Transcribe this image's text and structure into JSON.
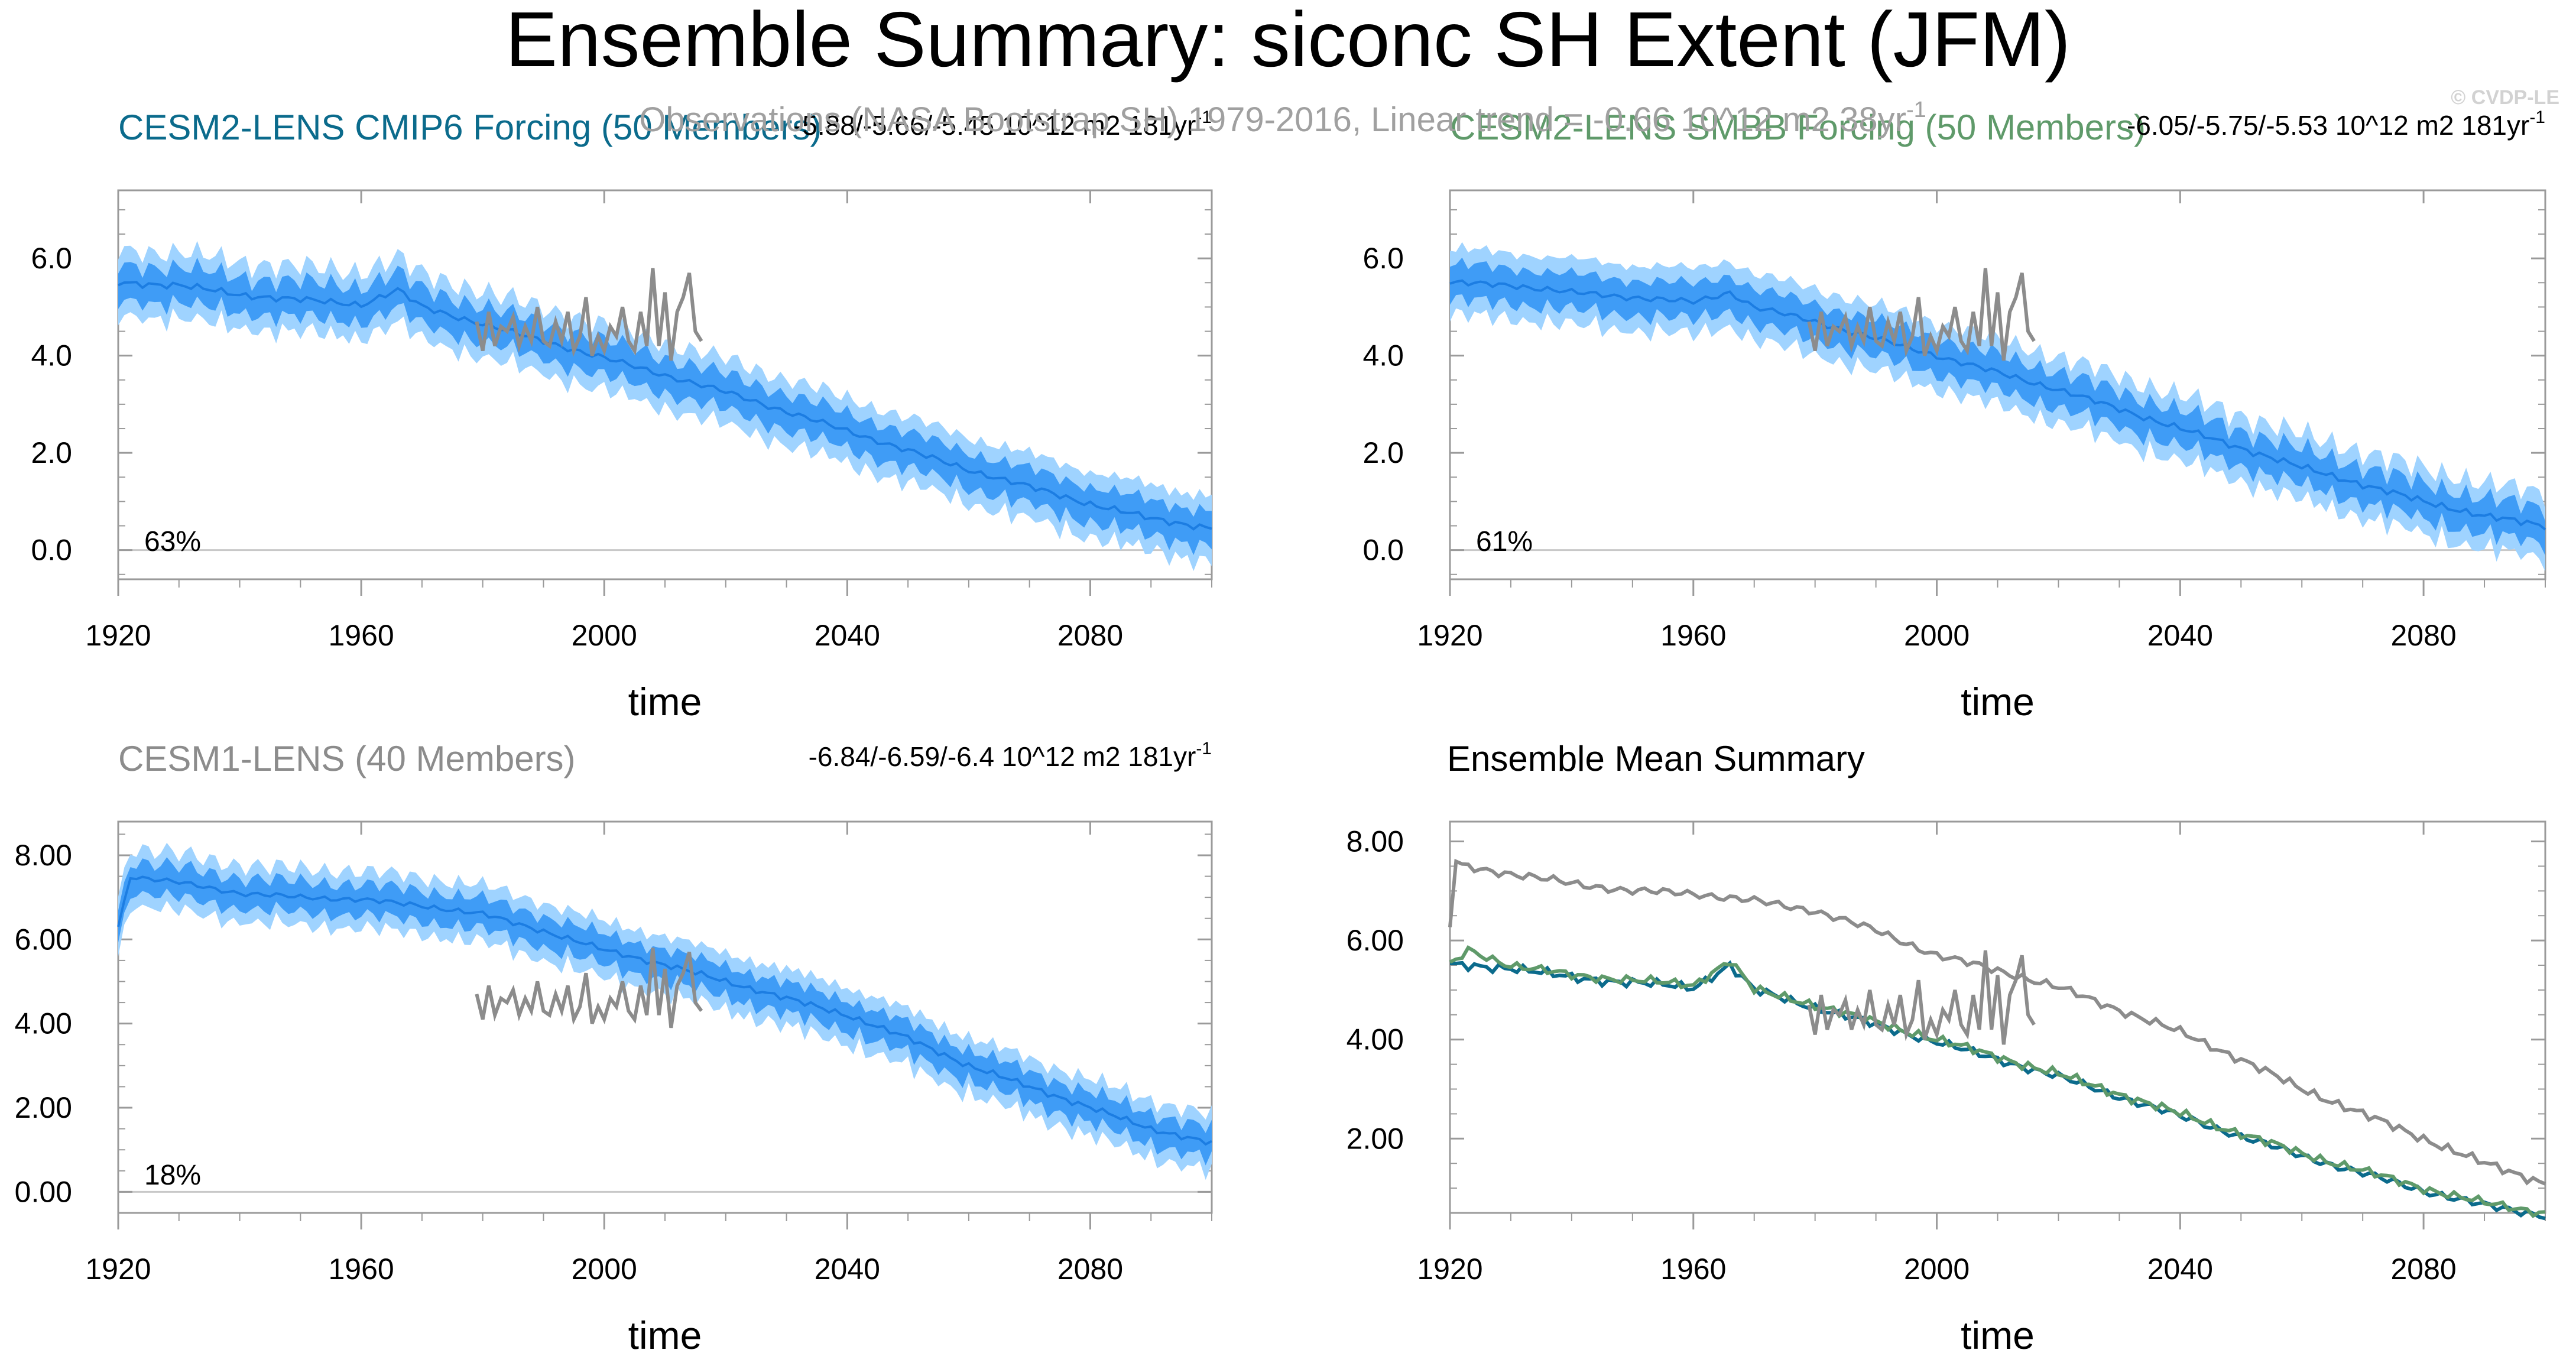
{
  "page": {
    "title": "Ensemble Summary: siconc SH Extent (JFM)",
    "observations_label": "Observations (NASA Bootstrap SH) 1979-2016, Linear trend = -0.66 10^12 m2 38yr",
    "observations_label_sup": "-1",
    "credit": "© CVDP-LE"
  },
  "colors": {
    "band_outer": "#9fd3ff",
    "band_inner": "#3f9cf6",
    "mean_line": "#1c7de2",
    "observations": "#8c8c8c",
    "cmip6": "#0b6b8c",
    "smbb": "#5f9a6a",
    "cesm1": "#8c8c8c",
    "axis": "#9a9a9a"
  },
  "chart_data": [
    {
      "id": "cmip6",
      "type": "line",
      "title": "CESM2-LENS CMIP6 Forcing (50 Members)",
      "title_color": "#0b6b8c",
      "trend": "-5.88/-5.66/-5.45 10^12 m2 181yr",
      "trend_sup": "-1",
      "percent": "63%",
      "xlabel": "time",
      "xlim": [
        1920,
        2100
      ],
      "xticks": [
        1920,
        1960,
        2000,
        2040,
        2080
      ],
      "xticklabels": [
        "1920",
        "1960",
        "2000",
        "2040",
        "2080"
      ],
      "ylim": [
        -0.6,
        7.4
      ],
      "yticks": [
        0,
        2,
        4,
        6
      ],
      "yticklabels": [
        "0.0",
        "2.0",
        "4.0",
        "6.0"
      ],
      "ensemble_mean": {
        "x": [
          1920,
          1930,
          1940,
          1950,
          1960,
          1966,
          1970,
          1980,
          1990,
          2000,
          2010,
          2020,
          2030,
          2040,
          2050,
          2060,
          2070,
          2080,
          2090,
          2100
        ],
        "y": [
          5.5,
          5.45,
          5.25,
          5.15,
          5.05,
          5.35,
          5.0,
          4.65,
          4.3,
          3.95,
          3.6,
          3.25,
          2.85,
          2.45,
          2.05,
          1.65,
          1.3,
          0.95,
          0.65,
          0.45
        ]
      },
      "band_inner_halfwidth": 0.35,
      "band_outer_halfwidth": 0.65,
      "observations": {
        "x": [
          1979,
          1980,
          1981,
          1982,
          1983,
          1984,
          1985,
          1986,
          1987,
          1988,
          1989,
          1990,
          1991,
          1992,
          1993,
          1994,
          1995,
          1996,
          1997,
          1998,
          1999,
          2000,
          2001,
          2002,
          2003,
          2004,
          2005,
          2006,
          2007,
          2008,
          2009,
          2010,
          2011,
          2012,
          2013,
          2014,
          2015,
          2016
        ],
        "y": [
          4.7,
          4.1,
          4.9,
          4.2,
          4.6,
          4.5,
          4.8,
          4.2,
          4.6,
          4.3,
          5.0,
          4.3,
          4.2,
          4.7,
          4.3,
          4.9,
          4.1,
          4.4,
          5.2,
          4.0,
          4.4,
          4.1,
          4.6,
          4.4,
          5.0,
          4.3,
          4.1,
          4.9,
          4.2,
          5.8,
          4.2,
          5.3,
          3.9,
          4.9,
          5.2,
          5.7,
          4.5,
          4.3
        ]
      }
    },
    {
      "id": "smbb",
      "type": "line",
      "title": "CESM2-LENS SMBB Forcing (50 Members)",
      "title_color": "#5f9a6a",
      "trend": "-6.05/-5.75/-5.53 10^12 m2 181yr",
      "trend_sup": "-1",
      "percent": "61%",
      "xlabel": "time",
      "xlim": [
        1920,
        2100
      ],
      "xticks": [
        1920,
        1960,
        2000,
        2040,
        2080
      ],
      "xticklabels": [
        "1920",
        "1960",
        "2000",
        "2040",
        "2080"
      ],
      "ylim": [
        -0.6,
        7.4
      ],
      "yticks": [
        0,
        2,
        4,
        6
      ],
      "yticklabels": [
        "0.0",
        "2.0",
        "4.0",
        "6.0"
      ],
      "ensemble_mean": {
        "x": [
          1920,
          1930,
          1940,
          1950,
          1960,
          1966,
          1970,
          1980,
          1990,
          2000,
          2010,
          2020,
          2030,
          2040,
          2050,
          2060,
          2070,
          2080,
          2090,
          2100
        ],
        "y": [
          5.5,
          5.45,
          5.3,
          5.2,
          5.1,
          5.3,
          5.0,
          4.7,
          4.35,
          4.0,
          3.65,
          3.3,
          2.9,
          2.5,
          2.1,
          1.7,
          1.35,
          1.0,
          0.7,
          0.5
        ]
      },
      "band_inner_halfwidth": 0.35,
      "band_outer_halfwidth": 0.65,
      "observations": {
        "x": [
          1979,
          1980,
          1981,
          1982,
          1983,
          1984,
          1985,
          1986,
          1987,
          1988,
          1989,
          1990,
          1991,
          1992,
          1993,
          1994,
          1995,
          1996,
          1997,
          1998,
          1999,
          2000,
          2001,
          2002,
          2003,
          2004,
          2005,
          2006,
          2007,
          2008,
          2009,
          2010,
          2011,
          2012,
          2013,
          2014,
          2015,
          2016
        ],
        "y": [
          4.7,
          4.1,
          4.9,
          4.2,
          4.6,
          4.5,
          4.8,
          4.2,
          4.6,
          4.3,
          5.0,
          4.3,
          4.2,
          4.7,
          4.3,
          4.9,
          4.1,
          4.4,
          5.2,
          4.0,
          4.4,
          4.1,
          4.6,
          4.4,
          5.0,
          4.3,
          4.1,
          4.9,
          4.2,
          5.8,
          4.2,
          5.3,
          3.9,
          4.9,
          5.2,
          5.7,
          4.5,
          4.3
        ]
      }
    },
    {
      "id": "cesm1",
      "type": "line",
      "title": "CESM1-LENS (40 Members)",
      "title_color": "#8c8c8c",
      "trend": "-6.84/-6.59/-6.4 10^12 m2 181yr",
      "trend_sup": "-1",
      "percent": "18%",
      "xlabel": "time",
      "xlim": [
        1920,
        2100
      ],
      "xticks": [
        1920,
        1960,
        2000,
        2040,
        2080
      ],
      "xticklabels": [
        "1920",
        "1960",
        "2000",
        "2040",
        "2080"
      ],
      "ylim": [
        -0.5,
        8.8
      ],
      "yticks": [
        0,
        2,
        4,
        6,
        8
      ],
      "yticklabels": [
        "0.00",
        "2.00",
        "4.00",
        "6.00",
        "8.00"
      ],
      "ensemble_mean": {
        "x": [
          1920,
          1922,
          1930,
          1940,
          1950,
          1960,
          1970,
          1980,
          1990,
          2000,
          2010,
          2020,
          2030,
          2040,
          2050,
          2060,
          2070,
          2080,
          2090,
          2100
        ],
        "y": [
          6.3,
          7.5,
          7.35,
          7.1,
          7.0,
          6.95,
          6.8,
          6.6,
          6.2,
          5.75,
          5.4,
          5.0,
          4.6,
          4.2,
          3.65,
          3.0,
          2.5,
          2.0,
          1.5,
          1.15
        ]
      },
      "band_inner_halfwidth": 0.35,
      "band_outer_halfwidth": 0.65,
      "observations": {
        "x": [
          1979,
          1980,
          1981,
          1982,
          1983,
          1984,
          1985,
          1986,
          1987,
          1988,
          1989,
          1990,
          1991,
          1992,
          1993,
          1994,
          1995,
          1996,
          1997,
          1998,
          1999,
          2000,
          2001,
          2002,
          2003,
          2004,
          2005,
          2006,
          2007,
          2008,
          2009,
          2010,
          2011,
          2012,
          2013,
          2014,
          2015,
          2016
        ],
        "y": [
          4.7,
          4.1,
          4.9,
          4.2,
          4.6,
          4.5,
          4.8,
          4.2,
          4.6,
          4.3,
          5.0,
          4.3,
          4.2,
          4.7,
          4.3,
          4.9,
          4.1,
          4.4,
          5.2,
          4.0,
          4.4,
          4.1,
          4.6,
          4.4,
          5.0,
          4.3,
          4.1,
          4.9,
          4.2,
          5.8,
          4.2,
          5.3,
          3.9,
          4.9,
          5.2,
          5.7,
          4.5,
          4.3
        ]
      }
    },
    {
      "id": "summary",
      "type": "line",
      "title": "Ensemble Mean Summary",
      "title_color": "#000000",
      "xlabel": "time",
      "xlim": [
        1920,
        2100
      ],
      "xticks": [
        1920,
        1960,
        2000,
        2040,
        2080
      ],
      "xticklabels": [
        "1920",
        "1960",
        "2000",
        "2040",
        "2080"
      ],
      "ylim": [
        0.5,
        8.4
      ],
      "yticks": [
        2,
        4,
        6,
        8
      ],
      "yticklabels": [
        "2.00",
        "4.00",
        "6.00",
        "8.00"
      ],
      "series": [
        {
          "name": "CESM1-LENS",
          "color": "#8c8c8c",
          "x": [
            1920,
            1921,
            1922,
            1930,
            1940,
            1950,
            1960,
            1970,
            1980,
            1990,
            2000,
            2010,
            2020,
            2030,
            2040,
            2050,
            2060,
            2070,
            2080,
            2090,
            2100
          ],
          "y": [
            6.3,
            7.6,
            7.5,
            7.35,
            7.15,
            7.0,
            6.95,
            6.8,
            6.6,
            6.2,
            5.7,
            5.4,
            5.05,
            4.6,
            4.15,
            3.6,
            3.0,
            2.5,
            2.0,
            1.5,
            1.1
          ]
        },
        {
          "name": "CESM2-LENS CMIP6 Forcing",
          "color": "#0b6b8c",
          "x": [
            1920,
            1930,
            1940,
            1950,
            1960,
            1966,
            1970,
            1980,
            1990,
            2000,
            2010,
            2020,
            2030,
            2040,
            2050,
            2060,
            2070,
            2080,
            2090,
            2100
          ],
          "y": [
            5.5,
            5.45,
            5.25,
            5.15,
            5.05,
            5.5,
            5.0,
            4.65,
            4.3,
            3.95,
            3.6,
            3.25,
            2.85,
            2.45,
            2.05,
            1.65,
            1.3,
            0.95,
            0.65,
            0.45
          ]
        },
        {
          "name": "CESM2-LENS SMBB Forcing",
          "color": "#5f9a6a",
          "x": [
            1920,
            1923,
            1930,
            1940,
            1950,
            1960,
            1966,
            1970,
            1980,
            1990,
            2000,
            2010,
            2020,
            2030,
            2040,
            2050,
            2060,
            2070,
            2080,
            2090,
            2100
          ],
          "y": [
            5.5,
            5.8,
            5.5,
            5.3,
            5.2,
            5.1,
            5.6,
            5.0,
            4.7,
            4.35,
            4.0,
            3.65,
            3.3,
            2.9,
            2.5,
            2.1,
            1.7,
            1.35,
            1.0,
            0.7,
            0.5
          ]
        },
        {
          "name": "Observations",
          "color": "#8c8c8c",
          "x": [
            1979,
            1980,
            1981,
            1982,
            1983,
            1984,
            1985,
            1986,
            1987,
            1988,
            1989,
            1990,
            1991,
            1992,
            1993,
            1994,
            1995,
            1996,
            1997,
            1998,
            1999,
            2000,
            2001,
            2002,
            2003,
            2004,
            2005,
            2006,
            2007,
            2008,
            2009,
            2010,
            2011,
            2012,
            2013,
            2014,
            2015,
            2016
          ],
          "y": [
            4.7,
            4.1,
            4.9,
            4.2,
            4.6,
            4.5,
            4.8,
            4.2,
            4.6,
            4.3,
            5.0,
            4.3,
            4.2,
            4.7,
            4.3,
            4.9,
            4.1,
            4.4,
            5.2,
            4.0,
            4.4,
            4.1,
            4.6,
            4.4,
            5.0,
            4.3,
            4.1,
            4.9,
            4.2,
            5.8,
            4.2,
            5.3,
            3.9,
            4.9,
            5.2,
            5.7,
            4.5,
            4.3
          ]
        }
      ]
    }
  ]
}
